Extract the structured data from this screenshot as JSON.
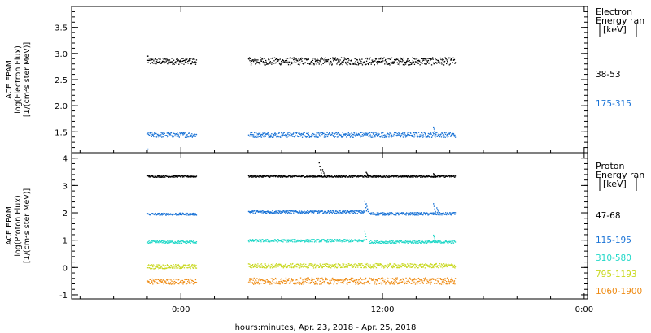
{
  "xlabel": "hours:minutes, Apr. 23, 2018 - Apr. 25, 2018",
  "x_ticks": [
    "0:00",
    "12:00",
    "0:00"
  ],
  "chart_data": [
    {
      "type": "scatter",
      "ylabel": [
        "ACE EPAM",
        "log(Electron Flux)",
        "[1/(cm²s ster MeV)]"
      ],
      "ylim": [
        1.1,
        3.9
      ],
      "y_ticks": [
        "1.5",
        "2.0",
        "2.5",
        "3.0",
        "3.5"
      ],
      "y_tick_values": [
        1.5,
        2.0,
        2.5,
        3.0,
        3.5
      ],
      "legend_title": [
        "Electron",
        "Energy ran",
        "[keV]"
      ],
      "x_units": "hours since Apr. 23, 2018 00:00",
      "xlim": [
        -6.5,
        24.2
      ],
      "series": [
        {
          "name": "38-53",
          "color": "#000000",
          "segments": [
            {
              "x_start": -2.0,
              "x_end": 0.9,
              "level": 2.86,
              "scatter": 0.06
            },
            {
              "x_start": 4.0,
              "x_end": 16.3,
              "level": 2.86,
              "scatter": 0.07
            }
          ],
          "start_value": 2.96
        },
        {
          "name": "175-315",
          "color": "#1a73d6",
          "segments": [
            {
              "x_start": -2.0,
              "x_end": 0.9,
              "level": 1.45,
              "scatter": 0.05
            },
            {
              "x_start": 4.0,
              "x_end": 16.3,
              "level": 1.45,
              "scatter": 0.05
            }
          ],
          "start_value": 1.18,
          "spikes": [
            {
              "x": 15.0,
              "value": 1.6
            }
          ]
        }
      ]
    },
    {
      "type": "scatter",
      "ylabel": [
        "ACE EPAM",
        "log(Proton Flux)",
        "[1/(cm²s ster MeV)]"
      ],
      "ylim": [
        -1.15,
        4.2
      ],
      "y_ticks": [
        "-1",
        "0",
        "1",
        "2",
        "3",
        "4"
      ],
      "y_tick_values": [
        -1,
        0,
        1,
        2,
        3,
        4
      ],
      "legend_title": [
        "Proton",
        "Energy ran",
        "[keV]"
      ],
      "x_units": "hours since Apr. 23, 2018 00:00",
      "xlim": [
        -6.5,
        24.2
      ],
      "series": [
        {
          "name": "47-68",
          "color": "#000000",
          "segments": [
            {
              "x_start": -2.0,
              "x_end": 0.9,
              "level": 3.35,
              "scatter": 0.03
            },
            {
              "x_start": 4.0,
              "x_end": 16.3,
              "level": 3.35,
              "scatter": 0.03
            }
          ],
          "spikes": [
            {
              "x": 8.2,
              "value": 3.85
            },
            {
              "x": 8.4,
              "value": 3.6
            },
            {
              "x": 11.0,
              "value": 3.5
            },
            {
              "x": 15.0,
              "value": 3.45
            }
          ]
        },
        {
          "name": "115-195",
          "color": "#1a73d6",
          "segments": [
            {
              "x_start": -2.0,
              "x_end": 0.9,
              "level": 1.97,
              "scatter": 0.04
            },
            {
              "x_start": 4.0,
              "x_end": 10.9,
              "level": 2.05,
              "scatter": 0.05
            },
            {
              "x_start": 11.2,
              "x_end": 16.3,
              "level": 1.98,
              "scatter": 0.05
            }
          ],
          "spikes": [
            {
              "x": 10.9,
              "value": 2.45
            },
            {
              "x": 11.0,
              "value": 2.35
            },
            {
              "x": 15.0,
              "value": 2.35
            },
            {
              "x": 15.2,
              "value": 2.2
            }
          ]
        },
        {
          "name": "310-580",
          "color": "#22d8c8",
          "segments": [
            {
              "x_start": -2.0,
              "x_end": 0.9,
              "level": 0.95,
              "scatter": 0.05
            },
            {
              "x_start": 4.0,
              "x_end": 10.9,
              "level": 1.0,
              "scatter": 0.05
            },
            {
              "x_start": 11.2,
              "x_end": 16.3,
              "level": 0.95,
              "scatter": 0.05
            }
          ],
          "spikes": [
            {
              "x": 10.9,
              "value": 1.35
            },
            {
              "x": 15.0,
              "value": 1.2
            }
          ]
        },
        {
          "name": "795-1193",
          "color": "#c8d81e",
          "segments": [
            {
              "x_start": -2.0,
              "x_end": 0.9,
              "level": 0.05,
              "scatter": 0.08
            },
            {
              "x_start": 4.0,
              "x_end": 16.3,
              "level": 0.08,
              "scatter": 0.08
            }
          ]
        },
        {
          "name": "1060-1900",
          "color": "#ee8a12",
          "segments": [
            {
              "x_start": -2.0,
              "x_end": 0.9,
              "level": -0.5,
              "scatter": 0.1
            },
            {
              "x_start": 4.0,
              "x_end": 16.3,
              "level": -0.48,
              "scatter": 0.12
            }
          ]
        }
      ]
    }
  ]
}
